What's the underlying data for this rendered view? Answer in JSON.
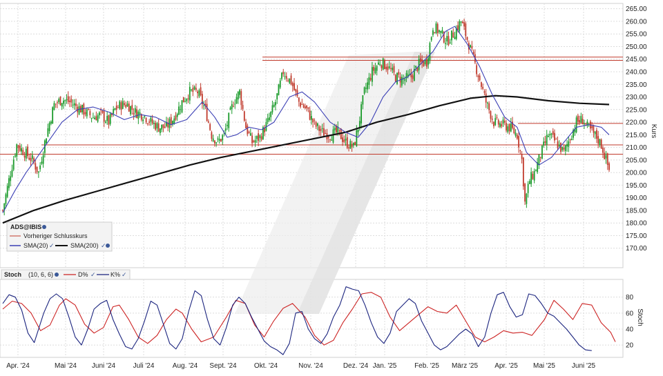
{
  "chart_data": [
    {
      "type": "candlestick",
      "ylabel": "Kurs",
      "ylim": [
        165,
        266
      ],
      "yticks": [
        "170.00",
        "175.00",
        "180.00",
        "185.00",
        "190.00",
        "195.00",
        "200.00",
        "205.00",
        "210.00",
        "215.00",
        "220.00",
        "225.00",
        "230.00",
        "235.00",
        "240.00",
        "245.00",
        "250.00",
        "255.00",
        "260.00",
        "265.00"
      ],
      "x_months": [
        "Apr. '24",
        "Mai '24",
        "Juni '24",
        "Juli '24",
        "Aug. '24",
        "Sept. '24",
        "Okt. '24",
        "Nov. '24",
        "Dez. '24",
        "Jan. '25",
        "Feb. '25",
        "März '25",
        "Apr. '25",
        "Mai '25",
        "Juni '25"
      ],
      "legend": {
        "symbol": "ADS@IBIS",
        "previous_close": "Vorheriger Schlusskurs",
        "sma20": "SMA(20)",
        "sma200": "SMA(200)"
      },
      "horizontal_lines": [
        244.5,
        245.8,
        219.5,
        211.0,
        207.3
      ],
      "close_path": [
        [
          0,
          185
        ],
        [
          5,
          200
        ],
        [
          9,
          211
        ],
        [
          14,
          208
        ],
        [
          19,
          205
        ],
        [
          23,
          200
        ],
        [
          28,
          215
        ],
        [
          33,
          227
        ],
        [
          38,
          229
        ],
        [
          43,
          228
        ],
        [
          48,
          226
        ],
        [
          53,
          224
        ],
        [
          58,
          222
        ],
        [
          63,
          223
        ],
        [
          68,
          220
        ],
        [
          72,
          225
        ],
        [
          76,
          227
        ],
        [
          80,
          227
        ],
        [
          85,
          224
        ],
        [
          90,
          223
        ],
        [
          95,
          220
        ],
        [
          100,
          218
        ],
        [
          105,
          218
        ],
        [
          110,
          222
        ],
        [
          115,
          228
        ],
        [
          120,
          232
        ],
        [
          125,
          232
        ],
        [
          130,
          225
        ],
        [
          134,
          215
        ],
        [
          138,
          212
        ],
        [
          142,
          215
        ],
        [
          148,
          228
        ],
        [
          152,
          232
        ],
        [
          156,
          218
        ],
        [
          160,
          212
        ],
        [
          165,
          214
        ],
        [
          170,
          220
        ],
        [
          175,
          228
        ],
        [
          180,
          240
        ],
        [
          185,
          236
        ],
        [
          190,
          228
        ],
        [
          195,
          225
        ],
        [
          200,
          219
        ],
        [
          205,
          216
        ],
        [
          210,
          215
        ],
        [
          215,
          216
        ],
        [
          220,
          212
        ],
        [
          225,
          210
        ],
        [
          228,
          218
        ],
        [
          232,
          232
        ],
        [
          237,
          240
        ],
        [
          242,
          244
        ],
        [
          247,
          242
        ],
        [
          252,
          238
        ],
        [
          257,
          237
        ],
        [
          262,
          238
        ],
        [
          267,
          243
        ],
        [
          272,
          244
        ],
        [
          276,
          258
        ],
        [
          280,
          256
        ],
        [
          285,
          252
        ],
        [
          289,
          255
        ],
        [
          294,
          260
        ],
        [
          298,
          253
        ],
        [
          302,
          245
        ],
        [
          306,
          237
        ],
        [
          310,
          228
        ],
        [
          315,
          220
        ],
        [
          320,
          219
        ],
        [
          325,
          218
        ],
        [
          330,
          215
        ],
        [
          333,
          205
        ],
        [
          335,
          188
        ],
        [
          338,
          197
        ],
        [
          341,
          200
        ],
        [
          345,
          207
        ],
        [
          350,
          215
        ],
        [
          355,
          212
        ],
        [
          360,
          208
        ],
        [
          364,
          214
        ],
        [
          368,
          220
        ],
        [
          372,
          221
        ],
        [
          375,
          218
        ],
        [
          378,
          216
        ],
        [
          381,
          214
        ],
        [
          384,
          211
        ],
        [
          387,
          205
        ],
        [
          389,
          201
        ]
      ],
      "sma20": [
        [
          0,
          184
        ],
        [
          8,
          193
        ],
        [
          15,
          200
        ],
        [
          22,
          206
        ],
        [
          30,
          213
        ],
        [
          38,
          220
        ],
        [
          48,
          225
        ],
        [
          58,
          226
        ],
        [
          68,
          224
        ],
        [
          78,
          221
        ],
        [
          88,
          223
        ],
        [
          98,
          222
        ],
        [
          108,
          219
        ],
        [
          118,
          221
        ],
        [
          128,
          228
        ],
        [
          136,
          222
        ],
        [
          144,
          214
        ],
        [
          150,
          215
        ],
        [
          158,
          218
        ],
        [
          166,
          217
        ],
        [
          174,
          220
        ],
        [
          184,
          230
        ],
        [
          192,
          232
        ],
        [
          200,
          228
        ],
        [
          210,
          220
        ],
        [
          220,
          216
        ],
        [
          228,
          214
        ],
        [
          236,
          220
        ],
        [
          244,
          230
        ],
        [
          252,
          236
        ],
        [
          260,
          238
        ],
        [
          268,
          243
        ],
        [
          276,
          248
        ],
        [
          284,
          256
        ],
        [
          290,
          258
        ],
        [
          298,
          251
        ],
        [
          306,
          242
        ],
        [
          314,
          231
        ],
        [
          322,
          222
        ],
        [
          330,
          218
        ],
        [
          336,
          208
        ],
        [
          344,
          203
        ],
        [
          352,
          206
        ],
        [
          360,
          212
        ],
        [
          368,
          218
        ],
        [
          376,
          219
        ],
        [
          384,
          218
        ],
        [
          389,
          215
        ]
      ],
      "sma200": [
        [
          0,
          180
        ],
        [
          20,
          185
        ],
        [
          40,
          189
        ],
        [
          60,
          192.5
        ],
        [
          80,
          196
        ],
        [
          100,
          199.5
        ],
        [
          120,
          203
        ],
        [
          140,
          206
        ],
        [
          160,
          208.5
        ],
        [
          180,
          211
        ],
        [
          200,
          213.5
        ],
        [
          220,
          216
        ],
        [
          240,
          220
        ],
        [
          260,
          223
        ],
        [
          280,
          226.5
        ],
        [
          300,
          229.5
        ],
        [
          316,
          230.5
        ],
        [
          330,
          230
        ],
        [
          350,
          228.5
        ],
        [
          370,
          227.5
        ],
        [
          389,
          227
        ]
      ]
    },
    {
      "type": "line",
      "title": "Stoch",
      "params": "(10, 6, 6)",
      "ylabel": "Stoch",
      "ylim": [
        8,
        97
      ],
      "yticks": [
        "20",
        "40",
        "60",
        "80"
      ],
      "series": [
        {
          "name": "D%",
          "color": "#cc2222",
          "values": [
            [
              0,
              65
            ],
            [
              6,
              75
            ],
            [
              12,
              72
            ],
            [
              18,
              60
            ],
            [
              24,
              38
            ],
            [
              30,
              45
            ],
            [
              36,
              70
            ],
            [
              40,
              78
            ],
            [
              46,
              70
            ],
            [
              52,
              46
            ],
            [
              58,
              35
            ],
            [
              64,
              42
            ],
            [
              70,
              68
            ],
            [
              74,
              70
            ],
            [
              80,
              52
            ],
            [
              86,
              30
            ],
            [
              92,
              22
            ],
            [
              98,
              32
            ],
            [
              104,
              52
            ],
            [
              110,
              65
            ],
            [
              114,
              60
            ],
            [
              120,
              40
            ],
            [
              126,
              24
            ],
            [
              134,
              30
            ],
            [
              142,
              55
            ],
            [
              148,
              76
            ],
            [
              154,
              72
            ],
            [
              160,
              45
            ],
            [
              166,
              30
            ],
            [
              172,
              50
            ],
            [
              178,
              66
            ],
            [
              184,
              72
            ],
            [
              192,
              55
            ],
            [
              198,
              32
            ],
            [
              204,
              20
            ],
            [
              210,
              26
            ],
            [
              216,
              48
            ],
            [
              222,
              65
            ],
            [
              228,
              84
            ],
            [
              234,
              86
            ],
            [
              240,
              80
            ],
            [
              246,
              55
            ],
            [
              252,
              38
            ],
            [
              258,
              48
            ],
            [
              264,
              58
            ],
            [
              270,
              68
            ],
            [
              276,
              62
            ],
            [
              282,
              60
            ],
            [
              288,
              70
            ],
            [
              294,
              50
            ],
            [
              300,
              30
            ],
            [
              306,
              24
            ],
            [
              312,
              30
            ],
            [
              318,
              38
            ],
            [
              324,
              35
            ],
            [
              330,
              36
            ],
            [
              336,
              32
            ],
            [
              344,
              52
            ],
            [
              350,
              76
            ],
            [
              356,
              65
            ],
            [
              362,
              52
            ],
            [
              368,
              72
            ],
            [
              374,
              70
            ],
            [
              380,
              48
            ],
            [
              386,
              36
            ],
            [
              389,
              24
            ]
          ]
        },
        {
          "name": "K%",
          "color": "#1a237e",
          "values": [
            [
              0,
              72
            ],
            [
              4,
              83
            ],
            [
              8,
              80
            ],
            [
              12,
              64
            ],
            [
              16,
              35
            ],
            [
              20,
              23
            ],
            [
              26,
              60
            ],
            [
              30,
              78
            ],
            [
              34,
              84
            ],
            [
              38,
              78
            ],
            [
              42,
              55
            ],
            [
              46,
              30
            ],
            [
              50,
              20
            ],
            [
              54,
              40
            ],
            [
              58,
              65
            ],
            [
              62,
              72
            ],
            [
              66,
              76
            ],
            [
              70,
              52
            ],
            [
              74,
              34
            ],
            [
              78,
              18
            ],
            [
              82,
              15
            ],
            [
              86,
              28
            ],
            [
              90,
              50
            ],
            [
              94,
              75
            ],
            [
              98,
              70
            ],
            [
              102,
              46
            ],
            [
              106,
              22
            ],
            [
              110,
              15
            ],
            [
              114,
              28
            ],
            [
              118,
              62
            ],
            [
              122,
              88
            ],
            [
              126,
              82
            ],
            [
              130,
              52
            ],
            [
              134,
              28
            ],
            [
              138,
              20
            ],
            [
              142,
              42
            ],
            [
              146,
              70
            ],
            [
              150,
              80
            ],
            [
              154,
              72
            ],
            [
              158,
              55
            ],
            [
              162,
              40
            ],
            [
              166,
              25
            ],
            [
              170,
              18
            ],
            [
              174,
              14
            ],
            [
              178,
              8
            ],
            [
              182,
              22
            ],
            [
              186,
              60
            ],
            [
              190,
              62
            ],
            [
              194,
              40
            ],
            [
              198,
              28
            ],
            [
              202,
              22
            ],
            [
              206,
              34
            ],
            [
              210,
              55
            ],
            [
              214,
              70
            ],
            [
              218,
              93
            ],
            [
              222,
              90
            ],
            [
              226,
              88
            ],
            [
              230,
              70
            ],
            [
              234,
              48
            ],
            [
              238,
              30
            ],
            [
              242,
              22
            ],
            [
              246,
              35
            ],
            [
              250,
              62
            ],
            [
              254,
              70
            ],
            [
              258,
              78
            ],
            [
              262,
              72
            ],
            [
              266,
              50
            ],
            [
              270,
              35
            ],
            [
              274,
              20
            ],
            [
              278,
              14
            ],
            [
              282,
              18
            ],
            [
              286,
              26
            ],
            [
              290,
              34
            ],
            [
              294,
              40
            ],
            [
              298,
              34
            ],
            [
              302,
              18
            ],
            [
              306,
              30
            ],
            [
              310,
              60
            ],
            [
              314,
              83
            ],
            [
              318,
              86
            ],
            [
              322,
              68
            ],
            [
              326,
              55
            ],
            [
              330,
              58
            ],
            [
              334,
              84
            ],
            [
              338,
              82
            ],
            [
              342,
              72
            ],
            [
              346,
              60
            ],
            [
              350,
              56
            ],
            [
              354,
              48
            ],
            [
              358,
              40
            ],
            [
              362,
              30
            ],
            [
              366,
              20
            ],
            [
              370,
              14
            ],
            [
              374,
              13
            ]
          ]
        }
      ]
    }
  ]
}
